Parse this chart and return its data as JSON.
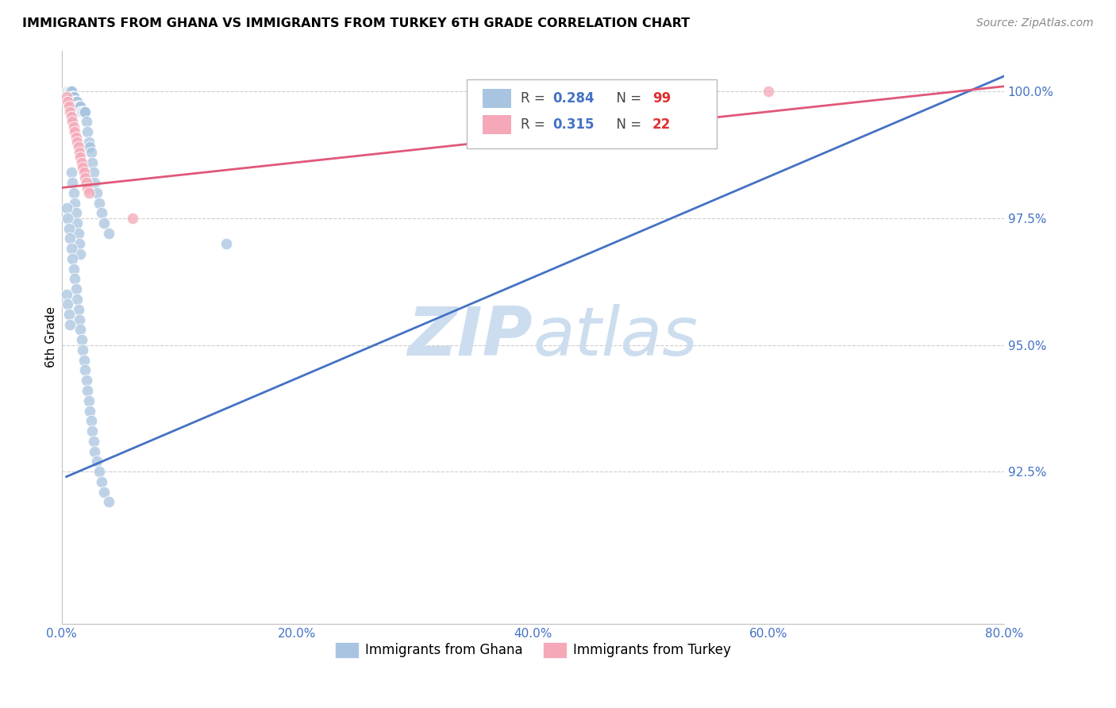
{
  "title": "IMMIGRANTS FROM GHANA VS IMMIGRANTS FROM TURKEY 6TH GRADE CORRELATION CHART",
  "source": "Source: ZipAtlas.com",
  "xlabel_ticks": [
    "0.0%",
    "",
    "",
    "",
    "",
    "",
    "",
    "",
    "",
    "20.0%",
    "",
    "",
    "",
    "",
    "",
    "",
    "",
    "",
    "",
    "40.0%",
    "",
    "",
    "",
    "",
    "",
    "",
    "",
    "",
    "",
    "60.0%",
    "",
    "",
    "",
    "",
    "",
    "",
    "",
    "",
    "",
    "80.0%"
  ],
  "xlabel_tick_vals_major": [
    0.0,
    0.2,
    0.4,
    0.6,
    0.8
  ],
  "xlabel_tick_labels_major": [
    "0.0%",
    "20.0%",
    "40.0%",
    "60.0%",
    "80.0%"
  ],
  "ylabel_ticks": [
    "92.5%",
    "95.0%",
    "97.5%",
    "100.0%"
  ],
  "ylabel_tick_vals": [
    0.925,
    0.95,
    0.975,
    1.0
  ],
  "xlim": [
    0.0,
    0.8
  ],
  "ylim": [
    0.895,
    1.008
  ],
  "ghana_R": 0.284,
  "ghana_N": 99,
  "turkey_R": 0.315,
  "turkey_N": 22,
  "ghana_color": "#a8c4e0",
  "turkey_color": "#f4a8b8",
  "ghana_line_color": "#4472c4",
  "turkey_line_color": "#e05878",
  "watermark_zip": "ZIP",
  "watermark_atlas": "atlas",
  "watermark_color": "#d5e8f5",
  "legend_label1": "Immigrants from Ghana",
  "legend_label2": "Immigrants from Turkey",
  "ghana_scatter_x": [
    0.004,
    0.005,
    0.005,
    0.006,
    0.006,
    0.007,
    0.007,
    0.007,
    0.008,
    0.008,
    0.008,
    0.008,
    0.009,
    0.009,
    0.009,
    0.009,
    0.01,
    0.01,
    0.01,
    0.01,
    0.011,
    0.011,
    0.011,
    0.012,
    0.012,
    0.012,
    0.013,
    0.013,
    0.014,
    0.014,
    0.015,
    0.015,
    0.015,
    0.016,
    0.016,
    0.017,
    0.017,
    0.018,
    0.018,
    0.019,
    0.019,
    0.02,
    0.021,
    0.022,
    0.023,
    0.024,
    0.025,
    0.026,
    0.027,
    0.028,
    0.03,
    0.032,
    0.034,
    0.036,
    0.04,
    0.008,
    0.009,
    0.01,
    0.011,
    0.012,
    0.013,
    0.014,
    0.015,
    0.016,
    0.004,
    0.005,
    0.006,
    0.007,
    0.008,
    0.009,
    0.01,
    0.011,
    0.012,
    0.013,
    0.014,
    0.015,
    0.016,
    0.017,
    0.018,
    0.019,
    0.02,
    0.021,
    0.022,
    0.023,
    0.024,
    0.025,
    0.026,
    0.027,
    0.028,
    0.03,
    0.032,
    0.034,
    0.036,
    0.04,
    0.004,
    0.005,
    0.006,
    0.007,
    0.14
  ],
  "ghana_scatter_y": [
    1.0,
    1.0,
    1.0,
    1.0,
    1.0,
    1.0,
    1.0,
    1.0,
    1.0,
    1.0,
    1.0,
    0.999,
    0.999,
    0.999,
    0.999,
    0.999,
    0.999,
    0.999,
    0.999,
    0.998,
    0.998,
    0.998,
    0.998,
    0.998,
    0.998,
    0.998,
    0.998,
    0.997,
    0.997,
    0.997,
    0.997,
    0.997,
    0.997,
    0.997,
    0.996,
    0.996,
    0.996,
    0.996,
    0.996,
    0.996,
    0.996,
    0.996,
    0.994,
    0.992,
    0.99,
    0.989,
    0.988,
    0.986,
    0.984,
    0.982,
    0.98,
    0.978,
    0.976,
    0.974,
    0.972,
    0.984,
    0.982,
    0.98,
    0.978,
    0.976,
    0.974,
    0.972,
    0.97,
    0.968,
    0.977,
    0.975,
    0.973,
    0.971,
    0.969,
    0.967,
    0.965,
    0.963,
    0.961,
    0.959,
    0.957,
    0.955,
    0.953,
    0.951,
    0.949,
    0.947,
    0.945,
    0.943,
    0.941,
    0.939,
    0.937,
    0.935,
    0.933,
    0.931,
    0.929,
    0.927,
    0.925,
    0.923,
    0.921,
    0.919,
    0.96,
    0.958,
    0.956,
    0.954,
    0.97
  ],
  "turkey_scatter_x": [
    0.004,
    0.005,
    0.006,
    0.007,
    0.008,
    0.009,
    0.01,
    0.011,
    0.012,
    0.013,
    0.014,
    0.015,
    0.016,
    0.017,
    0.018,
    0.019,
    0.02,
    0.021,
    0.022,
    0.023,
    0.06,
    0.6
  ],
  "turkey_scatter_y": [
    0.999,
    0.998,
    0.997,
    0.996,
    0.995,
    0.994,
    0.993,
    0.992,
    0.991,
    0.99,
    0.989,
    0.988,
    0.987,
    0.986,
    0.985,
    0.984,
    0.983,
    0.982,
    0.981,
    0.98,
    0.975,
    1.0
  ],
  "ghana_line_x0": 0.004,
  "ghana_line_x1": 0.8,
  "ghana_line_y0": 0.924,
  "ghana_line_y1": 1.003,
  "turkey_line_x0": 0.0,
  "turkey_line_x1": 0.8,
  "turkey_line_y0": 0.981,
  "turkey_line_y1": 1.001
}
